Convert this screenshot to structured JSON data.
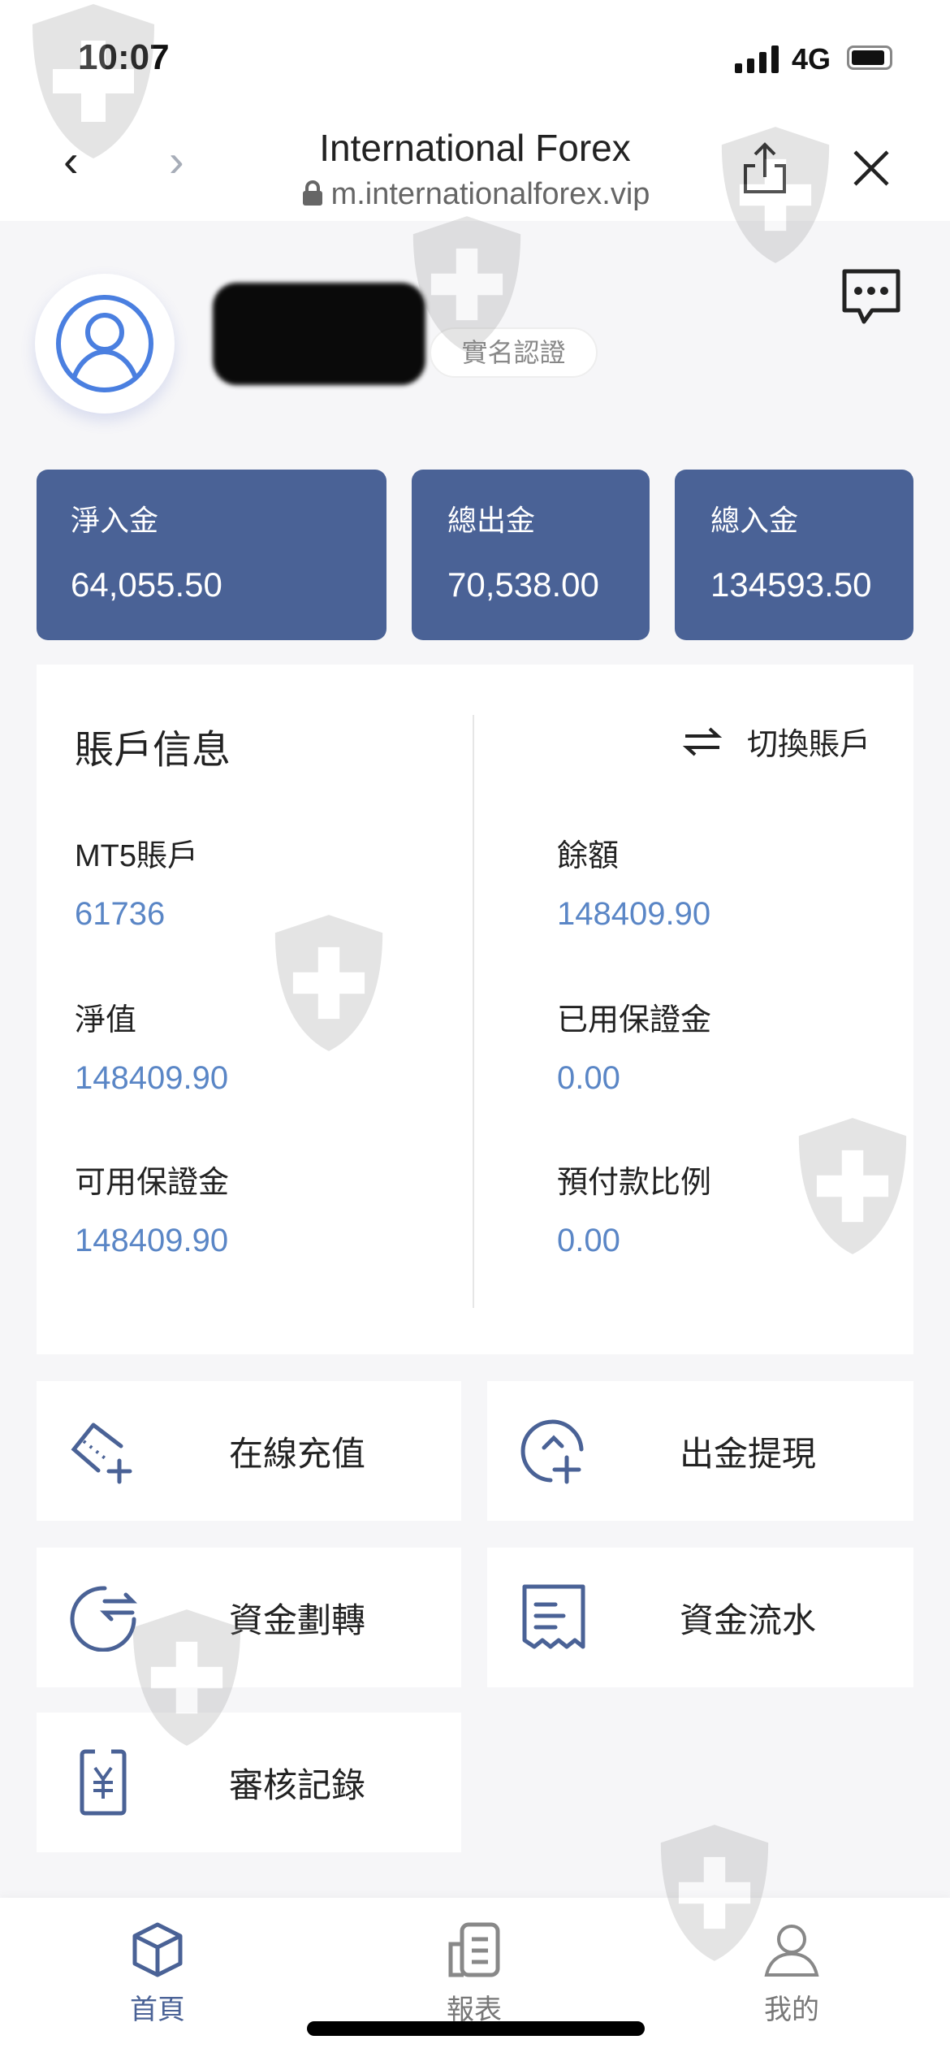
{
  "status_bar": {
    "time": "10:07",
    "network": "4G"
  },
  "browser": {
    "title": "International Forex",
    "url": "m.internationalforex.vip"
  },
  "profile": {
    "verify_badge": "實名認證"
  },
  "stats": [
    {
      "label": "淨入金",
      "value": "64,055.50"
    },
    {
      "label": "總出金",
      "value": "70,538.00"
    },
    {
      "label": "總入金",
      "value": "134593.50"
    }
  ],
  "account": {
    "title": "賬戶信息",
    "switch_label": "切換賬戶",
    "fields": [
      {
        "label": "MT5賬戶",
        "value": "61736"
      },
      {
        "label": "餘額",
        "value": "148409.90"
      },
      {
        "label": "淨值",
        "value": "148409.90"
      },
      {
        "label": "已用保證金",
        "value": "0.00"
      },
      {
        "label": "可用保證金",
        "value": "148409.90"
      },
      {
        "label": "預付款比例",
        "value": "0.00"
      }
    ]
  },
  "menu": [
    {
      "label": "在線充值",
      "icon": "card-plus-icon"
    },
    {
      "label": "出金提現",
      "icon": "withdraw-icon"
    },
    {
      "label": "資金劃轉",
      "icon": "transfer-icon"
    },
    {
      "label": "資金流水",
      "icon": "receipt-icon"
    },
    {
      "label": "審核記錄",
      "icon": "yen-document-icon"
    }
  ],
  "tabbar": [
    {
      "label": "首頁",
      "icon": "cube-icon",
      "active": true
    },
    {
      "label": "報表",
      "icon": "report-icon",
      "active": false
    },
    {
      "label": "我的",
      "icon": "user-icon",
      "active": false
    }
  ],
  "colors": {
    "accent": "#4a6296",
    "value_blue": "#5a86c6",
    "active_tab": "#4a6296",
    "inactive_tab": "#888888"
  }
}
